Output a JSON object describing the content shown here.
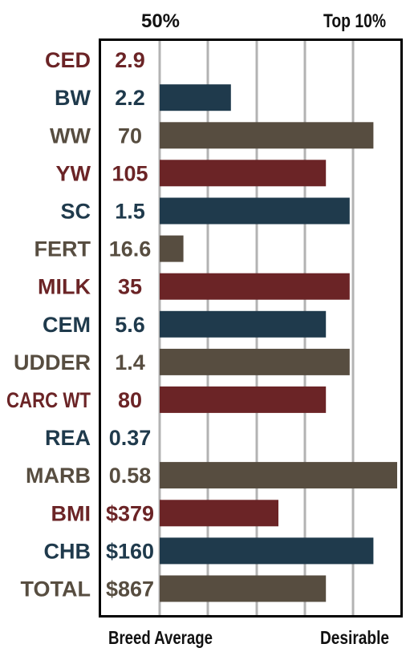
{
  "chart_data": {
    "type": "bar",
    "orientation": "horizontal",
    "top_labels": [
      "50%",
      "Top 10%"
    ],
    "bottom_labels": [
      "Breed Average",
      "Desirable"
    ],
    "grid": true,
    "rows": [
      {
        "trait": "CED",
        "value": "2.9",
        "bar": 0.0,
        "color": "red"
      },
      {
        "trait": "BW",
        "value": "2.2",
        "bar": 0.3,
        "color": "navy"
      },
      {
        "trait": "WW",
        "value": "70",
        "bar": 0.9,
        "color": "brown"
      },
      {
        "trait": "YW",
        "value": "105",
        "bar": 0.7,
        "color": "red"
      },
      {
        "trait": "SC",
        "value": "1.5",
        "bar": 0.8,
        "color": "navy"
      },
      {
        "trait": "FERT",
        "value": "16.6",
        "bar": 0.1,
        "color": "brown"
      },
      {
        "trait": "MILK",
        "value": "35",
        "bar": 0.8,
        "color": "red"
      },
      {
        "trait": "CEM",
        "value": "5.6",
        "bar": 0.7,
        "color": "navy"
      },
      {
        "trait": "UDDER",
        "value": "1.4",
        "bar": 0.8,
        "color": "brown"
      },
      {
        "trait": "CARC WT",
        "value": "80",
        "bar": 0.7,
        "color": "red"
      },
      {
        "trait": "REA",
        "value": "0.37",
        "bar": 0.0,
        "color": "navy"
      },
      {
        "trait": "MARB",
        "value": "0.58",
        "bar": 1.0,
        "color": "brown"
      },
      {
        "trait": "BMI",
        "value": "$379",
        "bar": 0.5,
        "color": "red"
      },
      {
        "trait": "CHB",
        "value": "$160",
        "bar": 0.9,
        "color": "navy"
      },
      {
        "trait": "TOTAL",
        "value": "$867",
        "bar": 0.7,
        "color": "brown"
      }
    ]
  },
  "colors": {
    "red": "#6b2426",
    "navy": "#1f3a4c",
    "brown": "#574d40",
    "grid": "#b3b3b3",
    "frame": "#000000"
  }
}
